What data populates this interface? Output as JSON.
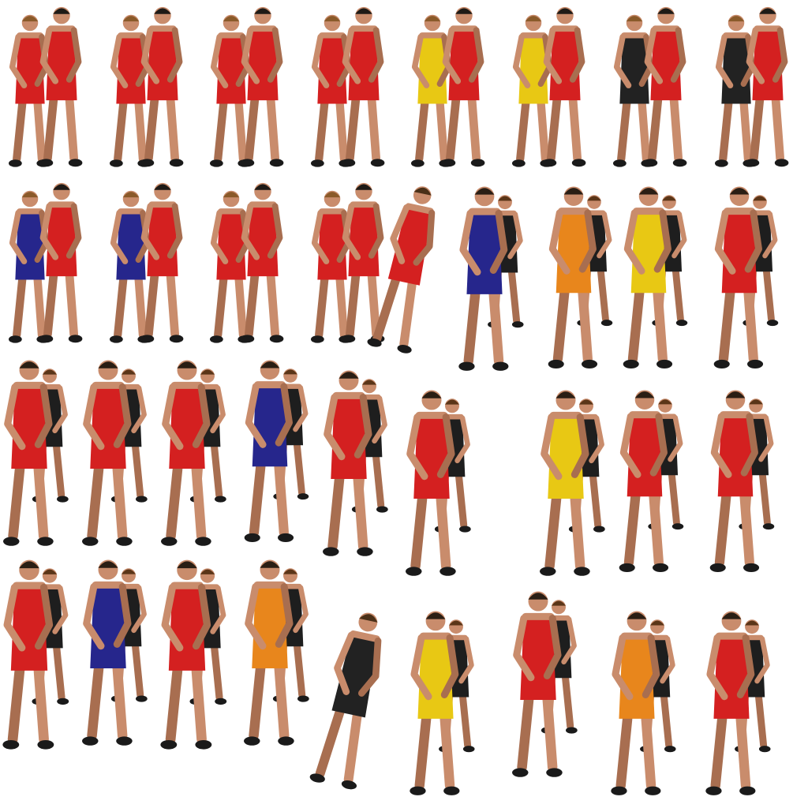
{
  "sprites": [
    {
      "color": "#d42020"
    },
    {
      "color": "#d42020"
    },
    {
      "color": "#d42020"
    },
    {
      "color": "#d42020"
    },
    {
      "color": "#e8c814"
    },
    {
      "color": "#e8c814"
    },
    {
      "color": "#222222"
    },
    {
      "color": "#222222"
    },
    {
      "color": "#26268c"
    },
    {
      "color": "#26268c"
    },
    {
      "color": "#d42020"
    },
    {
      "color": "#d42020"
    },
    {
      "color": "#d42020"
    },
    {
      "color": "#26268c"
    },
    {
      "color": "#e8861c"
    },
    {
      "color": "#e8c814"
    },
    {
      "color": "#d42020"
    },
    {
      "color": "#d42020"
    },
    {
      "color": "#d42020"
    },
    {
      "color": "#d42020"
    },
    {
      "color": "#26268c"
    },
    {
      "color": "#d42020"
    },
    {
      "color": "#d42020"
    },
    {
      "color": "#e8c814"
    },
    {
      "color": "#d42020"
    },
    {
      "color": "#d42020"
    },
    {
      "color": "#d42020"
    },
    {
      "color": "#26268c"
    },
    {
      "color": "#d42020"
    },
    {
      "color": "#e8861c"
    },
    {
      "color": "#222222"
    },
    {
      "color": "#e8c814"
    },
    {
      "color": "#d42020"
    },
    {
      "color": "#e8861c"
    },
    {
      "color": "#d42020"
    }
  ]
}
